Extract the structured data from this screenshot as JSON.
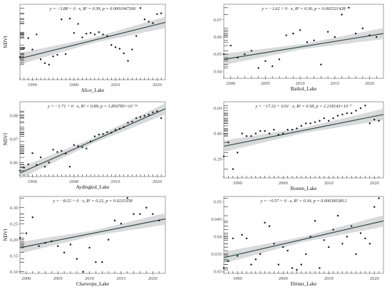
{
  "chart_data": [
    {
      "type": "scatter",
      "xlabel": "Alice_Lake",
      "ylabel": "NDVI",
      "annotation": "y = −3.88 + 0 · x,  R² = 0.39,  p = 0.0001047206",
      "x_ticks": [
        1990,
        2000,
        2010,
        2020
      ],
      "y_ticks": [],
      "xlim": [
        1987,
        2022
      ],
      "ylim": [
        0,
        1
      ],
      "points": {
        "x": [
          1987,
          1988,
          1989,
          1990,
          1991,
          1992,
          1993,
          1994,
          1995,
          1996,
          1997,
          1998,
          1999,
          2000,
          2001,
          2002,
          2003,
          2004,
          2005,
          2006,
          2007,
          2008,
          2009,
          2010,
          2011,
          2012,
          2013,
          2014,
          2015,
          2016,
          2017,
          2018,
          2019,
          2020,
          2021
        ],
        "y": [
          0.3,
          0.42,
          0.55,
          0.4,
          0.6,
          0.27,
          0.22,
          0.2,
          0.31,
          0.33,
          0.8,
          0.34,
          0.81,
          0.62,
          0.74,
          0.56,
          0.61,
          0.62,
          0.6,
          0.63,
          0.6,
          0.58,
          0.46,
          0.43,
          0.41,
          0.35,
          0.25,
          0.4,
          0.58,
          0.95,
          0.8,
          0.77,
          0.75,
          0.87,
          0.88
        ]
      },
      "fit": {
        "y": [
          0.28,
          0.76
        ]
      }
    },
    {
      "type": "scatter",
      "xlabel": "Barkol_Lake",
      "ylabel": "",
      "annotation": "y = −1.62 + 0 · x,  R² = 0.36,  p = 0.002521438",
      "x_ticks": [
        2000,
        2005,
        2010,
        2015,
        2020
      ],
      "y_ticks": [
        0.04,
        0.05,
        0.06,
        0.07
      ],
      "xlim": [
        1999,
        2022
      ],
      "ylim": [
        0.036,
        0.079
      ],
      "points": {
        "x": [
          1999,
          2000,
          2001,
          2002,
          2003,
          2004,
          2005,
          2006,
          2007,
          2008,
          2009,
          2010,
          2011,
          2012,
          2013,
          2014,
          2015,
          2016,
          2017,
          2018,
          2019,
          2020,
          2021
        ],
        "y": [
          0.05,
          0.055,
          0.048,
          0.05,
          0.052,
          0.042,
          0.046,
          0.043,
          0.047,
          0.061,
          0.062,
          0.064,
          0.057,
          0.058,
          0.044,
          0.063,
          0.06,
          0.073,
          0.077,
          0.062,
          0.065,
          0.061,
          0.06
        ]
      },
      "fit": {
        "y": [
          0.047,
          0.062
        ]
      }
    },
    {
      "type": "scatter",
      "xlabel": "Aydingkol_Lake",
      "ylabel": "NDVI",
      "annotation": "y = −1.71 + 0 · x,  R² = 0.89,  p = 1.850785×10⁻¹⁶",
      "x_ticks": [
        1990,
        2000,
        2010,
        2020
      ],
      "y_ticks": [
        0.06,
        0.07,
        0.08
      ],
      "xlim": [
        1987,
        2022
      ],
      "ylim": [
        0.054,
        0.086
      ],
      "points": {
        "x": [
          1987,
          1988,
          1989,
          1990,
          1991,
          1992,
          1993,
          1994,
          1995,
          1996,
          1997,
          1998,
          1999,
          2000,
          2001,
          2002,
          2003,
          2004,
          2005,
          2006,
          2007,
          2008,
          2009,
          2010,
          2011,
          2012,
          2013,
          2014,
          2015,
          2016,
          2017,
          2018,
          2019,
          2020,
          2021
        ],
        "y": [
          0.0565,
          0.0578,
          0.0592,
          0.064,
          0.059,
          0.0622,
          0.0582,
          0.06,
          0.0655,
          0.0645,
          0.065,
          0.0638,
          0.0582,
          0.0675,
          0.067,
          0.0666,
          0.066,
          0.069,
          0.0712,
          0.072,
          0.0722,
          0.073,
          0.0728,
          0.074,
          0.0745,
          0.0752,
          0.077,
          0.0775,
          0.079,
          0.0795,
          0.08,
          0.0805,
          0.0815,
          0.082,
          0.079
        ]
      },
      "fit": {
        "y": [
          0.0555,
          0.083
        ]
      }
    },
    {
      "type": "scatter",
      "xlabel": "Bosten_Lake",
      "ylabel": "",
      "annotation": "y = −17.32 + 0.01 · x,  R² = 0.58,  p = 2.218143×10⁻⁷",
      "x_ticks": [
        1990,
        2000,
        2010,
        2020
      ],
      "y_ticks": [
        0.2,
        0.4,
        0.6
      ],
      "xlim": [
        1987,
        2022
      ],
      "ylim": [
        0.05,
        0.65
      ],
      "points": {
        "x": [
          1987,
          1988,
          1989,
          1990,
          1991,
          1992,
          1993,
          1994,
          1995,
          1996,
          1997,
          1998,
          1999,
          2000,
          2001,
          2002,
          2003,
          2004,
          2005,
          2006,
          2007,
          2008,
          2009,
          2010,
          2011,
          2012,
          2013,
          2014,
          2015,
          2016,
          2017,
          2018,
          2019,
          2020,
          2021
        ],
        "y": [
          0.22,
          0.33,
          0.12,
          0.25,
          0.4,
          0.38,
          0.38,
          0.4,
          0.42,
          0.42,
          0.4,
          0.43,
          0.39,
          0.4,
          0.43,
          0.43,
          0.44,
          0.46,
          0.48,
          0.48,
          0.49,
          0.5,
          0.52,
          0.5,
          0.52,
          0.54,
          0.55,
          0.56,
          0.56,
          0.58,
          0.6,
          0.62,
          0.48,
          0.51,
          0.5
        ]
      },
      "fit": {
        "y": [
          0.3,
          0.55
        ]
      }
    },
    {
      "type": "scatter",
      "xlabel": "Chaiwopu_Lake",
      "ylabel": "NDVI",
      "annotation": "y = −8.52 + 0 · x,  R² = 0.22,  p = 0.0225358",
      "x_ticks": [
        2000,
        2005,
        2010,
        2015,
        2020
      ],
      "y_ticks": [
        0.1,
        0.15,
        0.2,
        0.25,
        0.3
      ],
      "xlim": [
        1999,
        2022
      ],
      "ylim": [
        0.095,
        0.335
      ],
      "points": {
        "x": [
          1999,
          2000,
          2001,
          2002,
          2003,
          2004,
          2005,
          2006,
          2007,
          2008,
          2009,
          2010,
          2011,
          2012,
          2013,
          2014,
          2015,
          2016,
          2017,
          2018,
          2019,
          2020,
          2021
        ],
        "y": [
          0.205,
          0.22,
          0.27,
          0.18,
          0.19,
          0.195,
          0.18,
          0.16,
          0.185,
          0.14,
          0.1,
          0.175,
          0.13,
          0.13,
          0.2,
          0.26,
          0.25,
          0.33,
          0.28,
          0.28,
          0.3,
          0.28,
          0.26
        ]
      },
      "fit": {
        "y": [
          0.175,
          0.265
        ]
      }
    },
    {
      "type": "scatter",
      "xlabel": "Ebinur_Lake",
      "ylabel": "",
      "annotation": "y = −0.57 + 0 · x,  R² = 0.34,  p = 0.0003853812",
      "x_ticks": [
        1990,
        2000,
        2010,
        2020
      ],
      "y_ticks": [
        0.03,
        0.035,
        0.04,
        0.045,
        0.05
      ],
      "xlim": [
        1987,
        2022
      ],
      "ylim": [
        0.0295,
        0.0515
      ],
      "points": {
        "x": [
          1987,
          1988,
          1989,
          1990,
          1991,
          1992,
          1993,
          1994,
          1995,
          1996,
          1997,
          1998,
          1999,
          2000,
          2001,
          2002,
          2003,
          2004,
          2005,
          2006,
          2007,
          2008,
          2009,
          2010,
          2011,
          2012,
          2013,
          2014,
          2015,
          2016,
          2017,
          2018,
          2019,
          2020,
          2021
        ],
        "y": [
          0.031,
          0.033,
          0.0395,
          0.0345,
          0.0405,
          0.0395,
          0.032,
          0.0335,
          0.035,
          0.044,
          0.043,
          0.038,
          0.032,
          0.037,
          0.036,
          0.031,
          0.0305,
          0.032,
          0.035,
          0.04,
          0.0445,
          0.031,
          0.039,
          0.037,
          0.042,
          0.046,
          0.038,
          0.04,
          0.043,
          0.035,
          0.041,
          0.0395,
          0.038,
          0.0485,
          0.051
        ]
      },
      "fit": {
        "y": [
          0.034,
          0.0445
        ]
      }
    }
  ],
  "colors": {
    "band": "#d4d4d4",
    "fit_line": "#2f4f4f",
    "points": "#111111",
    "frame": "#888888",
    "rug": "#222222"
  }
}
